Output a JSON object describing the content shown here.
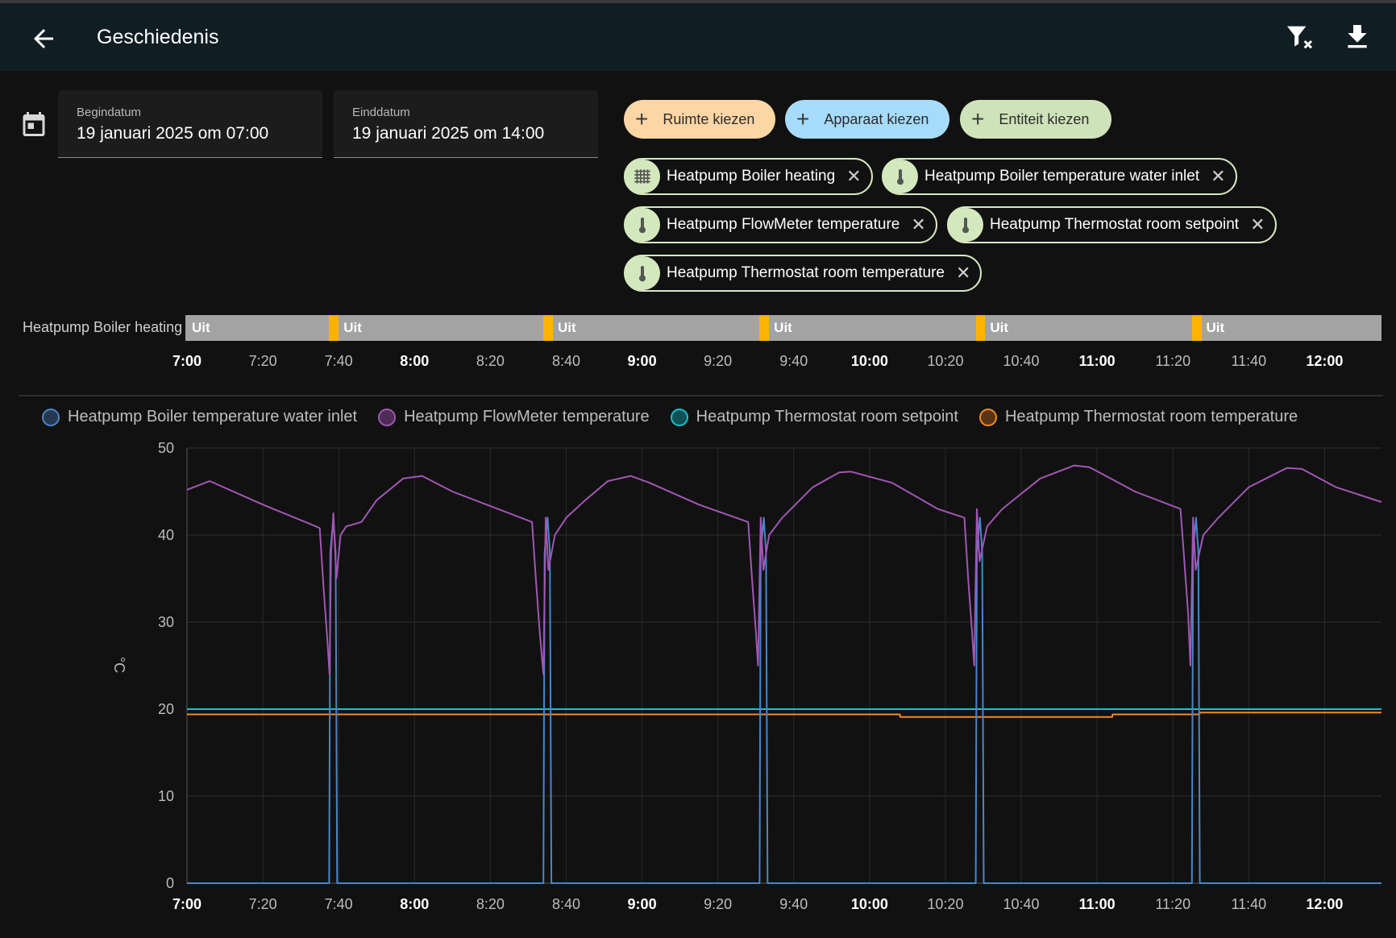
{
  "header": {
    "title": "Geschiedenis"
  },
  "dates": {
    "start_label": "Begindatum",
    "start_value": "19 januari 2025 om 07:00",
    "end_label": "Einddatum",
    "end_value": "19 januari 2025 om 14:00"
  },
  "add_chips": [
    {
      "label": "Ruimte kiezen",
      "color": "#fdd6a6"
    },
    {
      "label": "Apparaat kiezen",
      "color": "#a6dcfa"
    },
    {
      "label": "Entiteit kiezen",
      "color": "#cfe3ba"
    }
  ],
  "entity_chips": [
    {
      "label": "Heatpump Boiler heating",
      "icon": "radiator-icon"
    },
    {
      "label": "Heatpump Boiler temperature water inlet",
      "icon": "thermometer-icon"
    },
    {
      "label": "Heatpump FlowMeter temperature",
      "icon": "thermometer-icon"
    },
    {
      "label": "Heatpump Thermostat room setpoint",
      "icon": "thermometer-icon"
    },
    {
      "label": "Heatpump Thermostat room temperature",
      "icon": "thermometer-icon"
    }
  ],
  "timeline": {
    "entity": "Heatpump Boiler heating",
    "state_label": "Uit",
    "off_color": "#a3a3a3",
    "on_color": "#ffb300"
  },
  "x_ticks": [
    {
      "label": "7:00",
      "bold": true
    },
    {
      "label": "7:20",
      "bold": false
    },
    {
      "label": "7:40",
      "bold": false
    },
    {
      "label": "8:00",
      "bold": true
    },
    {
      "label": "8:20",
      "bold": false
    },
    {
      "label": "8:40",
      "bold": false
    },
    {
      "label": "9:00",
      "bold": true
    },
    {
      "label": "9:20",
      "bold": false
    },
    {
      "label": "9:40",
      "bold": false
    },
    {
      "label": "10:00",
      "bold": true
    },
    {
      "label": "10:20",
      "bold": false
    },
    {
      "label": "10:40",
      "bold": false
    },
    {
      "label": "11:00",
      "bold": true
    },
    {
      "label": "11:20",
      "bold": false
    },
    {
      "label": "11:40",
      "bold": false
    },
    {
      "label": "12:00",
      "bold": true
    }
  ],
  "chart_data": {
    "type": "line",
    "ylabel": "°C",
    "ylim": [
      0,
      50
    ],
    "yticks": [
      0,
      10,
      20,
      30,
      40,
      50
    ],
    "xlim_minutes_from_7": [
      0,
      315
    ],
    "grid": true,
    "legend_position": "top",
    "heating_on_intervals": [
      [
        37.5,
        40
      ],
      [
        94,
        96.5
      ],
      [
        151,
        153.5
      ],
      [
        208,
        210.5
      ],
      [
        265,
        267.5
      ]
    ],
    "series": [
      {
        "name": "Heatpump Boiler temperature water inlet",
        "color": "#4a86c8",
        "legend_fill": "#26384f",
        "points": [
          [
            0,
            0
          ],
          [
            37.5,
            0
          ],
          [
            37.8,
            38
          ],
          [
            38.6,
            42
          ],
          [
            39.2,
            38
          ],
          [
            39.6,
            0
          ],
          [
            94,
            0
          ],
          [
            94.3,
            38
          ],
          [
            95.1,
            42
          ],
          [
            95.7,
            38
          ],
          [
            96.1,
            0
          ],
          [
            151,
            0
          ],
          [
            151.3,
            38
          ],
          [
            152.1,
            42
          ],
          [
            152.7,
            38
          ],
          [
            153.1,
            0
          ],
          [
            208,
            0
          ],
          [
            208.3,
            38
          ],
          [
            209.1,
            42
          ],
          [
            209.7,
            38
          ],
          [
            210.1,
            0
          ],
          [
            265,
            0
          ],
          [
            265.3,
            38
          ],
          [
            266.1,
            42
          ],
          [
            266.7,
            38
          ],
          [
            267.1,
            0
          ],
          [
            315,
            0
          ]
        ]
      },
      {
        "name": "Heatpump FlowMeter temperature",
        "color": "#a256b5",
        "legend_fill": "#4d2c57",
        "points": [
          [
            0,
            45.2
          ],
          [
            6,
            46.2
          ],
          [
            20,
            43.5
          ],
          [
            34,
            41
          ],
          [
            35,
            40.8
          ],
          [
            36,
            34
          ],
          [
            37,
            28
          ],
          [
            37.6,
            24
          ],
          [
            38,
            38
          ],
          [
            38.6,
            42.5
          ],
          [
            39.4,
            35
          ],
          [
            40.5,
            40
          ],
          [
            42,
            41
          ],
          [
            46,
            41.5
          ],
          [
            50,
            44
          ],
          [
            57,
            46.5
          ],
          [
            62,
            46.8
          ],
          [
            70,
            45
          ],
          [
            85,
            42.5
          ],
          [
            91,
            41.5
          ],
          [
            92,
            35
          ],
          [
            93,
            29
          ],
          [
            94,
            24
          ],
          [
            94.6,
            42
          ],
          [
            95.3,
            36
          ],
          [
            97,
            40
          ],
          [
            100,
            42
          ],
          [
            105,
            44
          ],
          [
            111,
            46.2
          ],
          [
            117,
            46.8
          ],
          [
            122,
            46
          ],
          [
            135,
            43.5
          ],
          [
            148,
            41.5
          ],
          [
            149,
            35
          ],
          [
            150,
            29
          ],
          [
            150.6,
            25
          ],
          [
            151.3,
            42
          ],
          [
            152,
            36
          ],
          [
            153.5,
            40
          ],
          [
            157,
            42
          ],
          [
            165,
            45.5
          ],
          [
            172,
            47.2
          ],
          [
            175,
            47.3
          ],
          [
            186,
            46
          ],
          [
            198,
            43
          ],
          [
            205,
            42
          ],
          [
            206,
            35
          ],
          [
            207,
            29
          ],
          [
            207.6,
            25
          ],
          [
            208.3,
            43
          ],
          [
            209,
            37
          ],
          [
            211,
            41
          ],
          [
            215,
            43
          ],
          [
            225,
            46.5
          ],
          [
            234,
            48
          ],
          [
            238,
            47.8
          ],
          [
            250,
            45
          ],
          [
            262,
            43
          ],
          [
            263,
            37
          ],
          [
            264,
            31
          ],
          [
            264.6,
            25
          ],
          [
            265.3,
            42
          ],
          [
            266,
            36
          ],
          [
            268,
            40
          ],
          [
            272,
            42
          ],
          [
            280,
            45.5
          ],
          [
            290,
            47.7
          ],
          [
            294,
            47.6
          ],
          [
            303,
            45.5
          ],
          [
            315,
            43.8
          ]
        ]
      },
      {
        "name": "Heatpump Thermostat room setpoint",
        "color": "#19c2cb",
        "legend_fill": "#0f5155",
        "points": [
          [
            0,
            20
          ],
          [
            315,
            20
          ]
        ]
      },
      {
        "name": "Heatpump Thermostat room temperature",
        "color": "#f08a24",
        "legend_fill": "#5a3410",
        "points": [
          [
            0,
            19.4
          ],
          [
            188,
            19.4
          ],
          [
            188.1,
            19.1
          ],
          [
            244,
            19.1
          ],
          [
            244.1,
            19.4
          ],
          [
            267,
            19.4
          ],
          [
            267.1,
            19.6
          ],
          [
            315,
            19.6
          ]
        ]
      }
    ]
  }
}
